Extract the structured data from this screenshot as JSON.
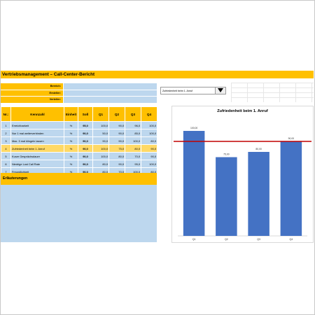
{
  "header": {
    "title": "Vertriebsmanagement – Call-Center-Bericht"
  },
  "meta": {
    "rows": [
      {
        "label": "Bereich:"
      },
      {
        "label": "Ersteller:"
      },
      {
        "label": "Verteiler:"
      }
    ]
  },
  "table": {
    "headers": [
      "Nr.:",
      "Kennzahl",
      "Einheit",
      "Soll",
      "Q1",
      "Q2",
      "Q3",
      "Q4"
    ],
    "rows": [
      [
        "1",
        "Erreichbarkeit",
        "%",
        "95,0",
        "100,0",
        "90,0",
        "96,0",
        "100,0"
      ],
      [
        "2",
        "Nur 1 mal weiterverbinden",
        "%",
        "90,0",
        "50,0",
        "90,0",
        "85,0",
        "100,0"
      ],
      [
        "3",
        "Max. 3 mal klingeln lassen",
        "%",
        "90,0",
        "90,0",
        "90,0",
        "100,0",
        "80,0"
      ],
      [
        "4",
        "Zufriedenheit beim 1. Anruf",
        "%",
        "90,0",
        "100,0",
        "75,0",
        "80,0",
        "90,0"
      ],
      [
        "5",
        "Kurze Gesprächsdauer",
        "%",
        "90,0",
        "100,0",
        "80,0",
        "70,0",
        "90,0"
      ],
      [
        "6",
        "Niedrige Lost Call Rate",
        "%",
        "90,0",
        "80,0",
        "90,0",
        "95,0",
        "100,0"
      ],
      [
        "7",
        "Freundlichkeit",
        "%",
        "90,0",
        "80,0",
        "70,0",
        "100,0",
        "80,0"
      ]
    ],
    "highlight_row": 3
  },
  "explanations": {
    "heading": "Erläuterungen"
  },
  "selector": {
    "value": "Zufriedenheit beim 1. Anruf"
  },
  "colors": {
    "accent": "#ffc000",
    "cell": "#bdd7ee",
    "highlight": "#ffd966",
    "bar": "#4472c4",
    "target": "#c00000"
  },
  "chart_data": {
    "type": "bar",
    "title": "Zufriedenheit beim 1. Anruf",
    "categories": [
      "Q1",
      "Q2",
      "Q3",
      "Q4"
    ],
    "values": [
      100,
      75,
      80,
      90
    ],
    "value_labels": [
      "100,00",
      "75,00",
      "80,00",
      "90,00"
    ],
    "target": 90,
    "ylim": [
      0,
      110
    ],
    "grid": false
  }
}
